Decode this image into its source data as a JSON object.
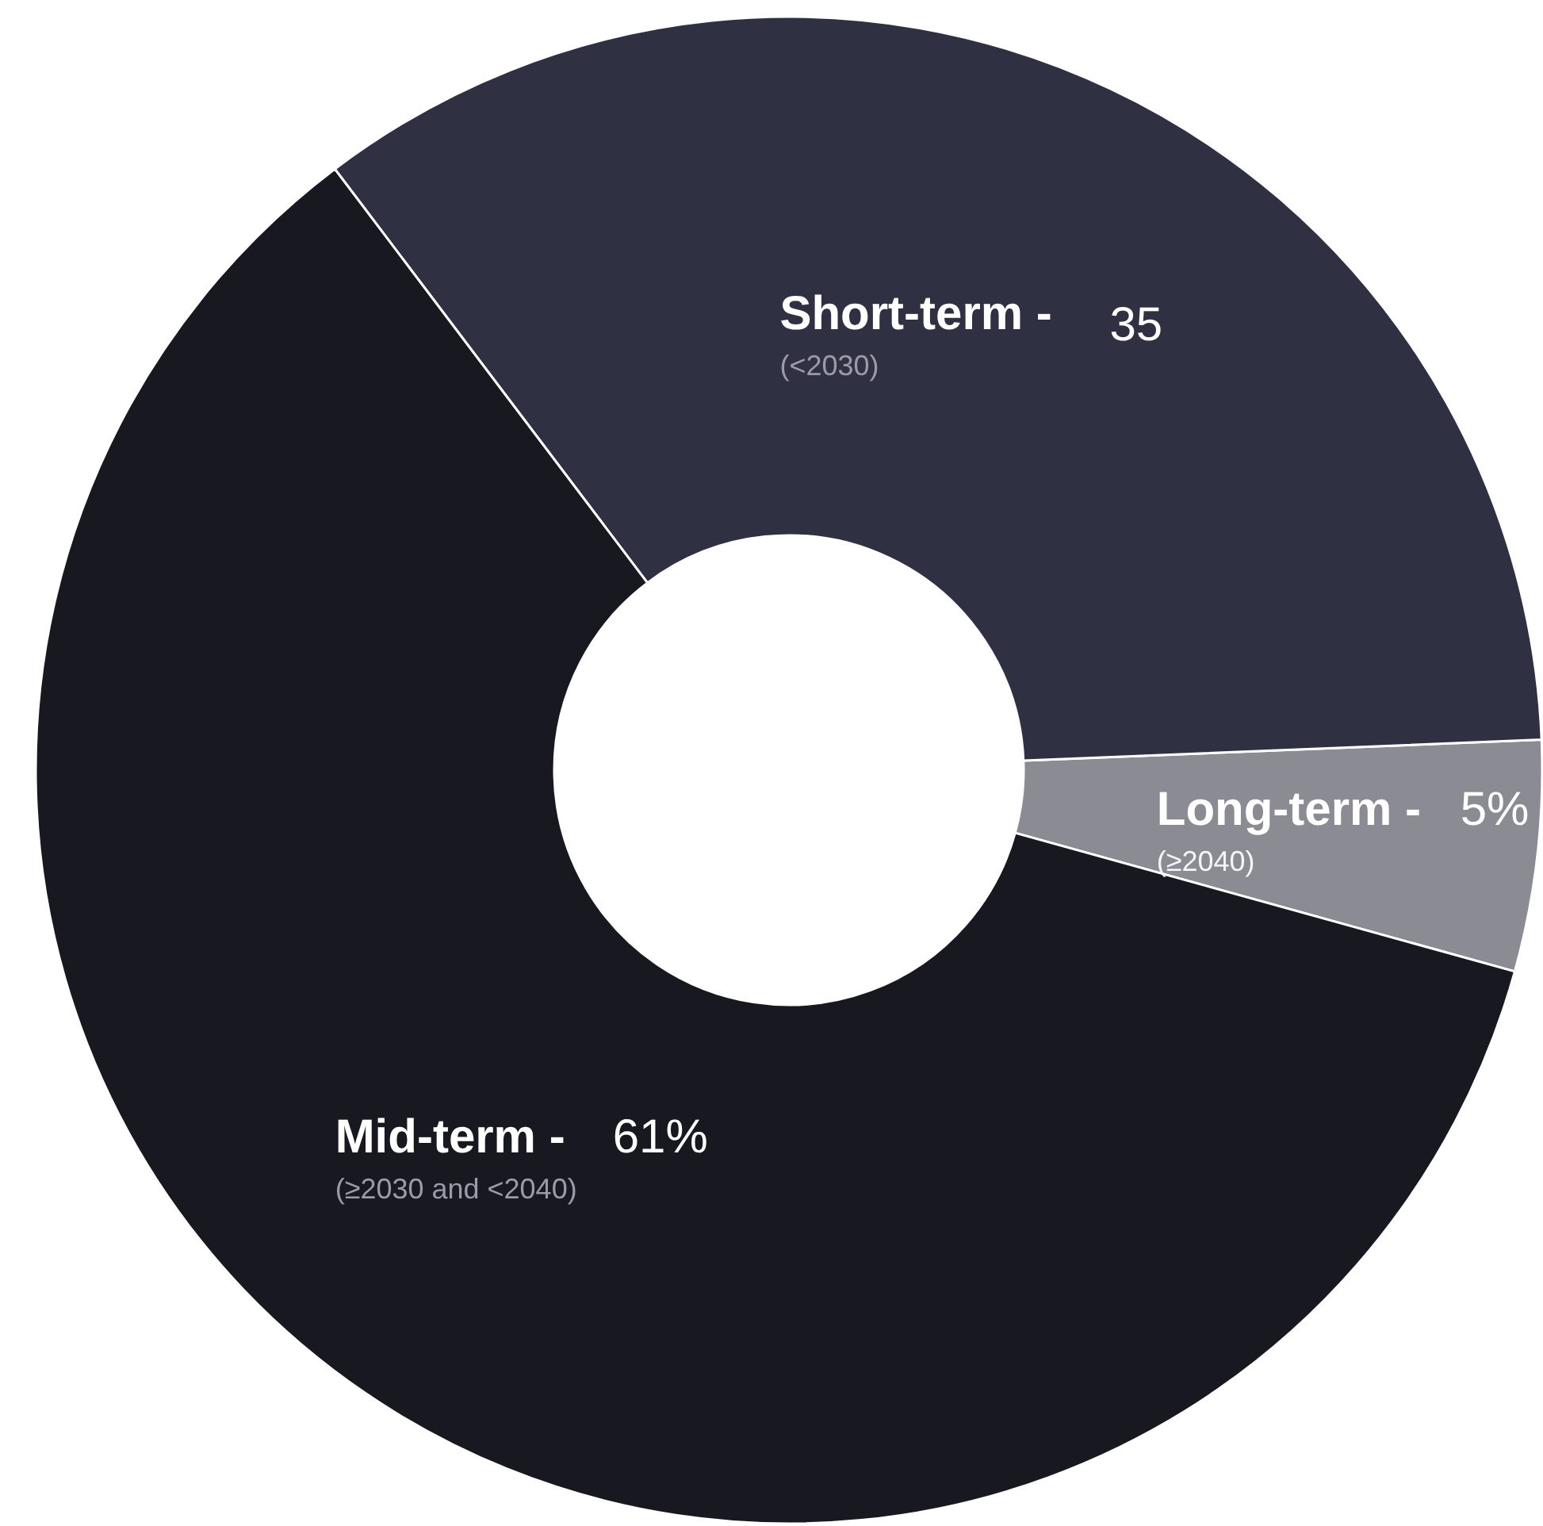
{
  "chart_data": {
    "type": "donut",
    "categories": [
      "Long-term -",
      "Short-term -",
      "Mid-term -"
    ],
    "values": [
      5,
      35,
      61
    ],
    "value_labels": [
      "5%",
      "35",
      "61%"
    ],
    "colors": [
      "#8a8b93",
      "#2f3142",
      "#181820"
    ],
    "annotations": [
      "(≥2040)",
      "(<2030)",
      "(≥2030 and <2040)"
    ]
  }
}
